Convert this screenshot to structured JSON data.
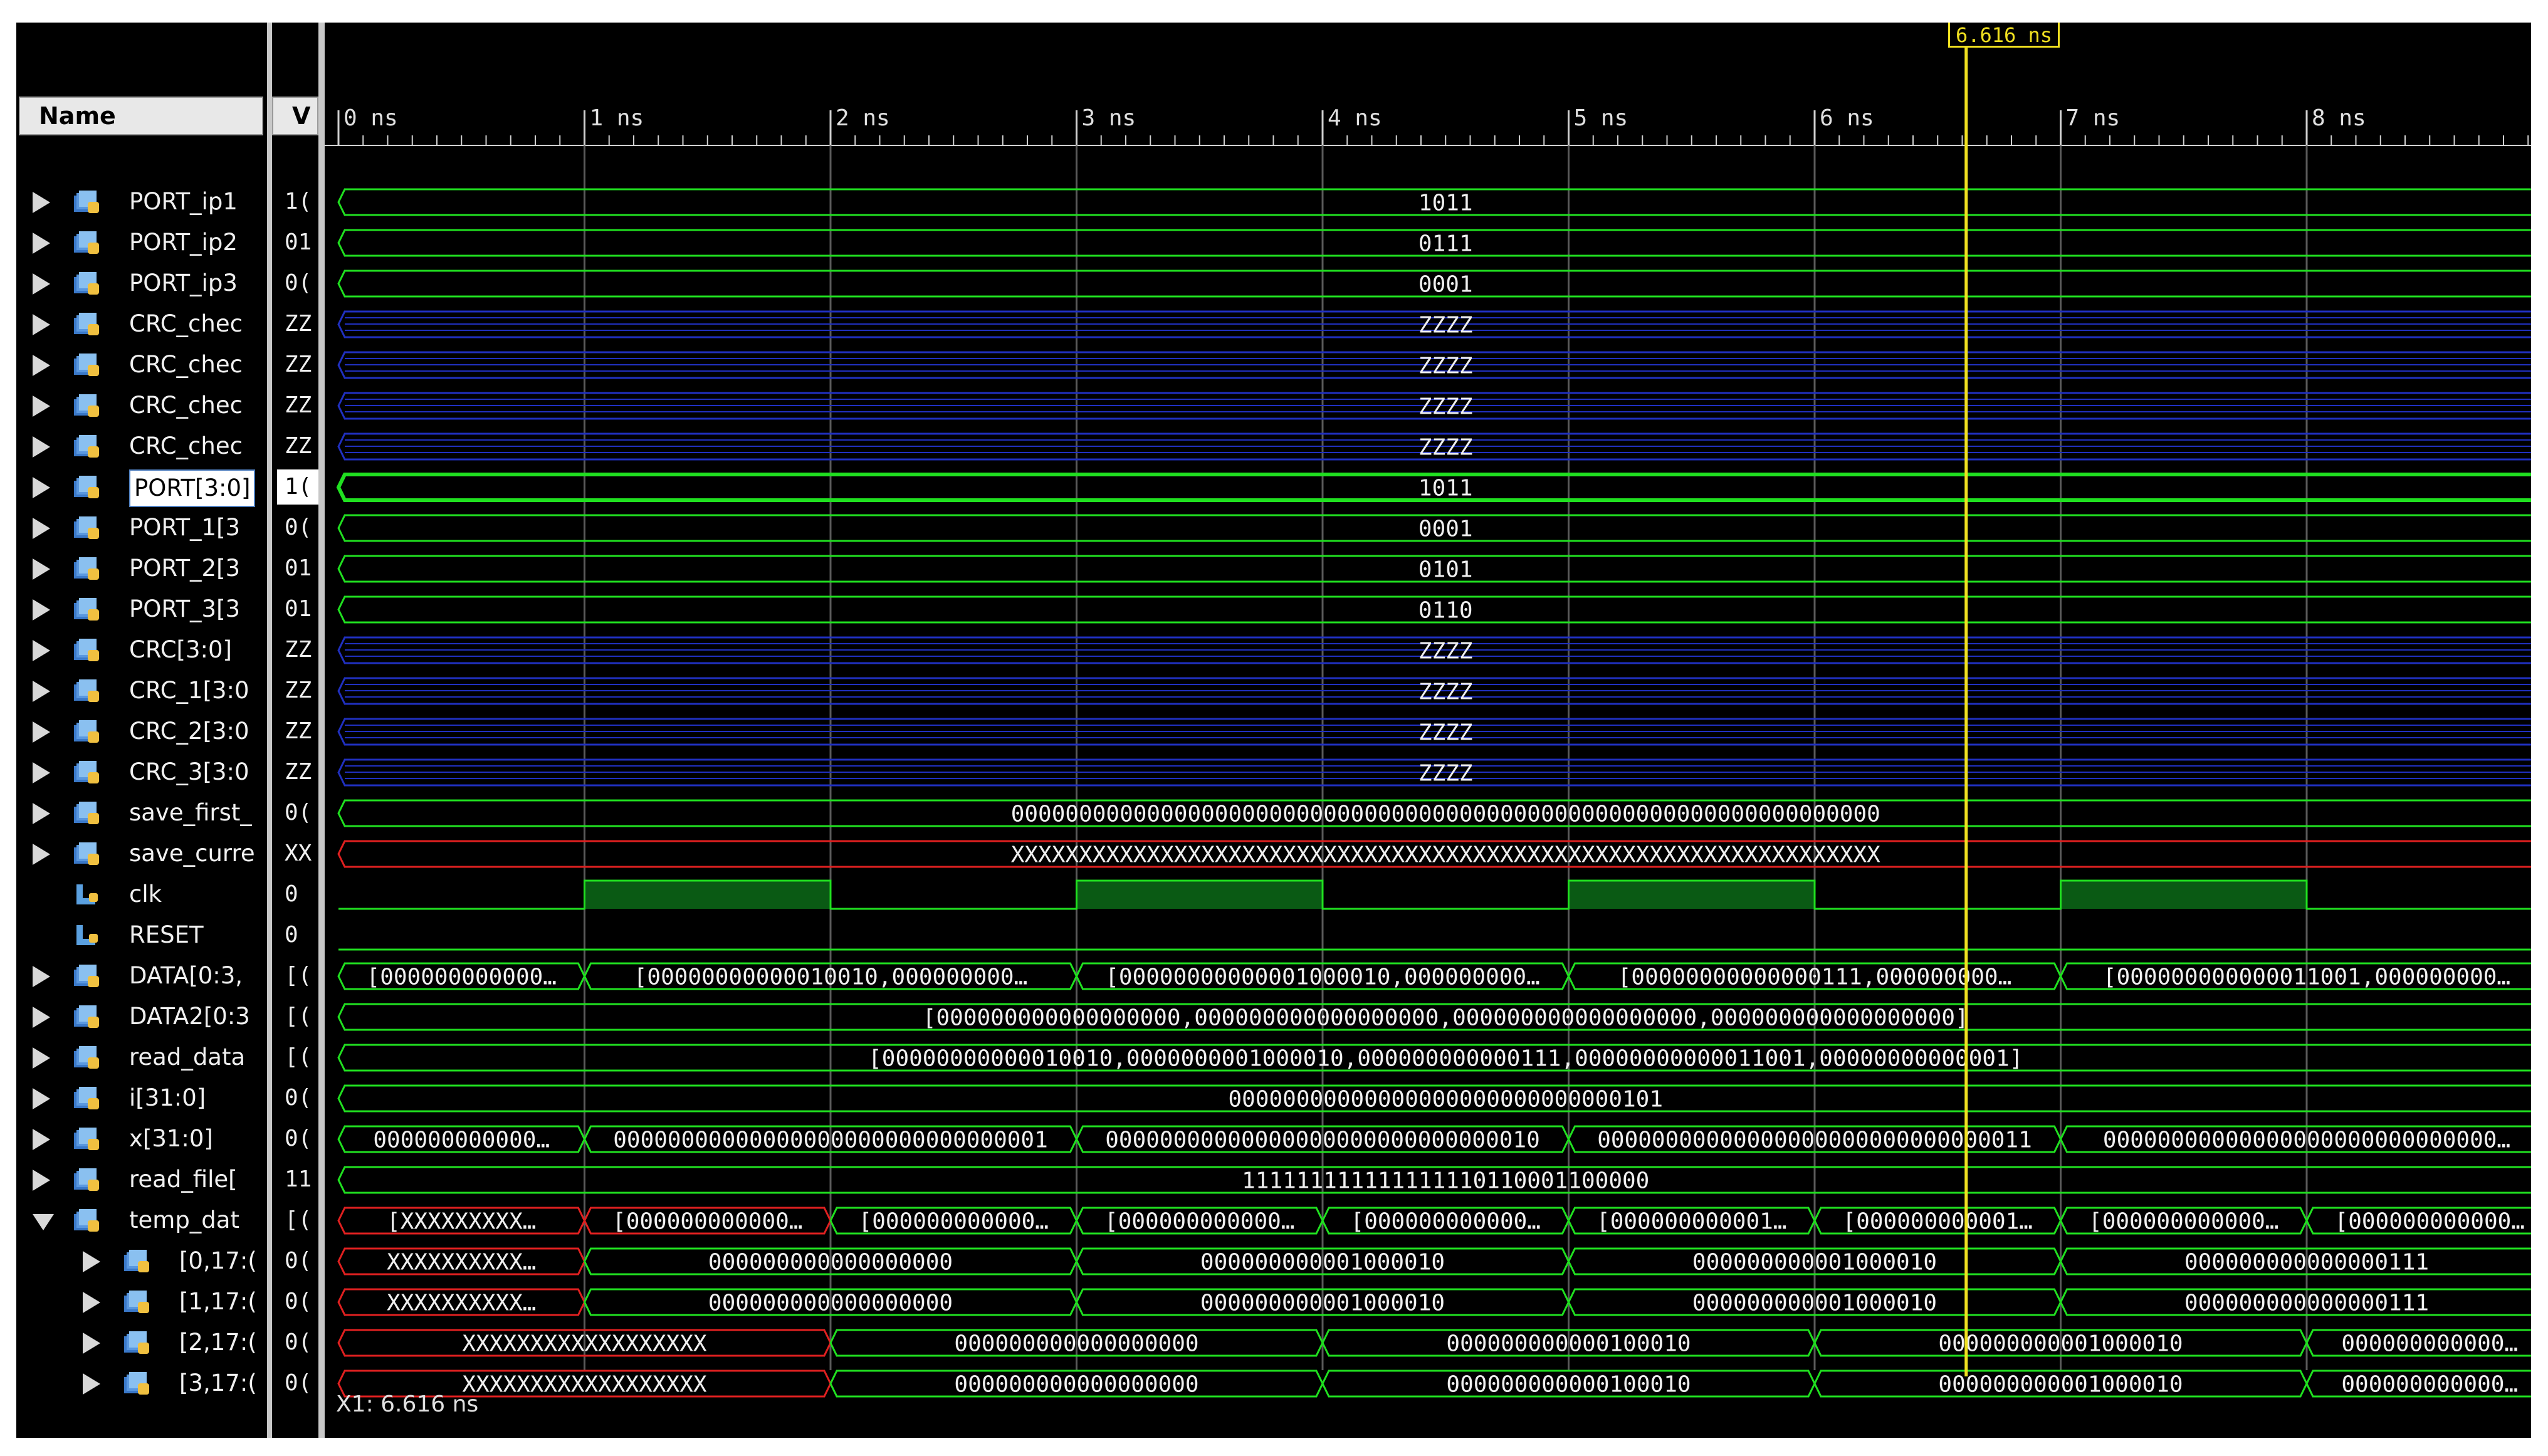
{
  "headers": {
    "name": "Name",
    "value": "V"
  },
  "cursor": {
    "label": "6.616 ns",
    "time_ns": 6.616
  },
  "status": {
    "x1": "X1: 6.616 ns"
  },
  "timeline": {
    "ticks": [
      "0 ns",
      "1 ns",
      "2 ns",
      "3 ns",
      "4 ns",
      "5 ns",
      "6 ns",
      "7 ns",
      "8 ns"
    ]
  },
  "colors": {
    "green": "#20e020",
    "blue": "#2030c0",
    "red": "#e02020",
    "cursor": "#f0e020",
    "clk_high": "#0a5a14"
  },
  "signals": [
    {
      "name": "PORT_ip1",
      "val": "1(",
      "icon": "bus-signal-icon",
      "depth": 0,
      "expand": "closed",
      "color": "green",
      "segments": [
        {
          "start": 0,
          "end": 9,
          "text": "1011"
        }
      ]
    },
    {
      "name": "PORT_ip2",
      "val": "01",
      "icon": "bus-signal-icon",
      "depth": 0,
      "expand": "closed",
      "color": "green",
      "segments": [
        {
          "start": 0,
          "end": 9,
          "text": "0111"
        }
      ]
    },
    {
      "name": "PORT_ip3",
      "val": "0(",
      "icon": "bus-signal-icon",
      "depth": 0,
      "expand": "closed",
      "color": "green",
      "segments": [
        {
          "start": 0,
          "end": 9,
          "text": "0001"
        }
      ]
    },
    {
      "name": "CRC_chec",
      "val": "ZZ",
      "icon": "bus-signal-icon",
      "depth": 0,
      "expand": "closed",
      "color": "blue",
      "segments": [
        {
          "start": 0,
          "end": 9,
          "text": "ZZZZ"
        }
      ]
    },
    {
      "name": "CRC_chec",
      "val": "ZZ",
      "icon": "bus-signal-icon",
      "depth": 0,
      "expand": "closed",
      "color": "blue",
      "segments": [
        {
          "start": 0,
          "end": 9,
          "text": "ZZZZ"
        }
      ]
    },
    {
      "name": "CRC_chec",
      "val": "ZZ",
      "icon": "bus-signal-icon",
      "depth": 0,
      "expand": "closed",
      "color": "blue",
      "segments": [
        {
          "start": 0,
          "end": 9,
          "text": "ZZZZ"
        }
      ]
    },
    {
      "name": "CRC_chec",
      "val": "ZZ",
      "icon": "bus-signal-icon",
      "depth": 0,
      "expand": "closed",
      "color": "blue",
      "segments": [
        {
          "start": 0,
          "end": 9,
          "text": "ZZZZ"
        }
      ]
    },
    {
      "name": "PORT[3:0]",
      "val": "1(",
      "icon": "bus-signal-icon",
      "depth": 0,
      "expand": "closed",
      "color": "green",
      "selected": true,
      "segments": [
        {
          "start": 0,
          "end": 9,
          "text": "1011"
        }
      ]
    },
    {
      "name": "PORT_1[3",
      "val": "0(",
      "icon": "bus-signal-icon",
      "depth": 0,
      "expand": "closed",
      "color": "green",
      "segments": [
        {
          "start": 0,
          "end": 9,
          "text": "0001"
        }
      ]
    },
    {
      "name": "PORT_2[3",
      "val": "01",
      "icon": "bus-signal-icon",
      "depth": 0,
      "expand": "closed",
      "color": "green",
      "segments": [
        {
          "start": 0,
          "end": 9,
          "text": "0101"
        }
      ]
    },
    {
      "name": "PORT_3[3",
      "val": "01",
      "icon": "bus-signal-icon",
      "depth": 0,
      "expand": "closed",
      "color": "green",
      "segments": [
        {
          "start": 0,
          "end": 9,
          "text": "0110"
        }
      ]
    },
    {
      "name": "CRC[3:0]",
      "val": "ZZ",
      "icon": "bus-signal-icon",
      "depth": 0,
      "expand": "closed",
      "color": "blue",
      "segments": [
        {
          "start": 0,
          "end": 9,
          "text": "ZZZZ"
        }
      ]
    },
    {
      "name": "CRC_1[3:0",
      "val": "ZZ",
      "icon": "bus-signal-icon",
      "depth": 0,
      "expand": "closed",
      "color": "blue",
      "segments": [
        {
          "start": 0,
          "end": 9,
          "text": "ZZZZ"
        }
      ]
    },
    {
      "name": "CRC_2[3:0",
      "val": "ZZ",
      "icon": "bus-signal-icon",
      "depth": 0,
      "expand": "closed",
      "color": "blue",
      "segments": [
        {
          "start": 0,
          "end": 9,
          "text": "ZZZZ"
        }
      ]
    },
    {
      "name": "CRC_3[3:0",
      "val": "ZZ",
      "icon": "bus-signal-icon",
      "depth": 0,
      "expand": "closed",
      "color": "blue",
      "segments": [
        {
          "start": 0,
          "end": 9,
          "text": "ZZZZ"
        }
      ]
    },
    {
      "name": "save_first_",
      "val": "0(",
      "icon": "bus-signal-icon",
      "depth": 0,
      "expand": "closed",
      "color": "green",
      "segments": [
        {
          "start": 0,
          "end": 9,
          "text": "0000000000000000000000000000000000000000000000000000000000000000"
        }
      ]
    },
    {
      "name": "save_curre",
      "val": "XX",
      "icon": "bus-signal-icon",
      "depth": 0,
      "expand": "closed",
      "color": "red",
      "segments": [
        {
          "start": 0,
          "end": 9,
          "text": "XXXXXXXXXXXXXXXXXXXXXXXXXXXXXXXXXXXXXXXXXXXXXXXXXXXXXXXXXXXXXXXX"
        }
      ]
    },
    {
      "name": "clk",
      "val": "0",
      "icon": "single-signal-icon",
      "depth": 1,
      "expand": "none",
      "kind": "clock",
      "period_ns": 2.0
    },
    {
      "name": "RESET",
      "val": "0",
      "icon": "single-signal-icon",
      "depth": 1,
      "expand": "none",
      "kind": "low"
    },
    {
      "name": "DATA[0:3,",
      "val": "[(",
      "icon": "bus-signal-icon",
      "depth": 0,
      "expand": "closed",
      "color": "green",
      "segments": [
        {
          "start": 0,
          "end": 1,
          "text": "[000000000000…"
        },
        {
          "start": 1,
          "end": 3,
          "text": "[00000000000010010,000000000…"
        },
        {
          "start": 3,
          "end": 5,
          "text": "[00000000000001000010,000000000…"
        },
        {
          "start": 5,
          "end": 7,
          "text": "[00000000000000111,000000000…"
        },
        {
          "start": 7,
          "end": 9,
          "text": "[000000000000011001,000000000…"
        }
      ]
    },
    {
      "name": "DATA2[0:3",
      "val": "[(",
      "icon": "bus-signal-icon",
      "depth": 0,
      "expand": "closed",
      "color": "green",
      "segments": [
        {
          "start": 0,
          "end": 9,
          "text": "[000000000000000000,000000000000000000,000000000000000000,000000000000000000]"
        }
      ]
    },
    {
      "name": "read_data",
      "val": "[(",
      "icon": "bus-signal-icon",
      "depth": 0,
      "expand": "closed",
      "color": "green",
      "segments": [
        {
          "start": 0,
          "end": 9,
          "text": "[00000000000010010,0000000001000010,000000000000111,00000000000011001,00000000000001]"
        }
      ]
    },
    {
      "name": "i[31:0]",
      "val": "0(",
      "icon": "bus-signal-icon",
      "depth": 0,
      "expand": "closed",
      "color": "green",
      "segments": [
        {
          "start": 0,
          "end": 9,
          "text": "00000000000000000000000000000101"
        }
      ]
    },
    {
      "name": "x[31:0]",
      "val": "0(",
      "icon": "bus-signal-icon",
      "depth": 0,
      "expand": "closed",
      "color": "green",
      "segments": [
        {
          "start": 0,
          "end": 1,
          "text": "000000000000…"
        },
        {
          "start": 1,
          "end": 3,
          "text": "00000000000000000000000000000001"
        },
        {
          "start": 3,
          "end": 5,
          "text": "00000000000000000000000000000010"
        },
        {
          "start": 5,
          "end": 7,
          "text": "00000000000000000000000000000011"
        },
        {
          "start": 7,
          "end": 9,
          "text": "00000000000000000000000000000…"
        }
      ]
    },
    {
      "name": "read_file[",
      "val": "11",
      "icon": "bus-signal-icon",
      "depth": 0,
      "expand": "closed",
      "color": "green",
      "segments": [
        {
          "start": 0,
          "end": 9,
          "text": "111111111111111110110001100000"
        }
      ]
    },
    {
      "name": "temp_dat",
      "val": "[(",
      "icon": "bus-signal-icon",
      "depth": 0,
      "expand": "open",
      "color": "green",
      "segments": [
        {
          "start": 0,
          "end": 1,
          "text": "[XXXXXXXXX…",
          "color": "red"
        },
        {
          "start": 1,
          "end": 2,
          "text": "[000000000000…",
          "color": "red"
        },
        {
          "start": 2,
          "end": 3,
          "text": "[000000000000…"
        },
        {
          "start": 3,
          "end": 4,
          "text": "[000000000000…"
        },
        {
          "start": 4,
          "end": 5,
          "text": "[000000000000…"
        },
        {
          "start": 5,
          "end": 6,
          "text": "[000000000001…"
        },
        {
          "start": 6,
          "end": 7,
          "text": "[000000000001…"
        },
        {
          "start": 7,
          "end": 8,
          "text": "[000000000000…"
        },
        {
          "start": 8,
          "end": 9,
          "text": "[000000000000…"
        }
      ]
    },
    {
      "name": "[0,17:(",
      "val": "0(",
      "icon": "bus-signal-icon",
      "depth": 2,
      "expand": "closed",
      "color": "green",
      "segments": [
        {
          "start": 0,
          "end": 1,
          "text": "XXXXXXXXXX…",
          "color": "red"
        },
        {
          "start": 1,
          "end": 3,
          "text": "000000000000000000"
        },
        {
          "start": 3,
          "end": 5,
          "text": "000000000001000010"
        },
        {
          "start": 5,
          "end": 7,
          "text": "000000000001000010"
        },
        {
          "start": 7,
          "end": 9,
          "text": "000000000000000111"
        }
      ]
    },
    {
      "name": "[1,17:(",
      "val": "0(",
      "icon": "bus-signal-icon",
      "depth": 2,
      "expand": "closed",
      "color": "green",
      "segments": [
        {
          "start": 0,
          "end": 1,
          "text": "XXXXXXXXXX…",
          "color": "red"
        },
        {
          "start": 1,
          "end": 3,
          "text": "000000000000000000"
        },
        {
          "start": 3,
          "end": 5,
          "text": "000000000001000010"
        },
        {
          "start": 5,
          "end": 7,
          "text": "000000000001000010"
        },
        {
          "start": 7,
          "end": 9,
          "text": "000000000000000111"
        }
      ]
    },
    {
      "name": "[2,17:(",
      "val": "0(",
      "icon": "bus-signal-icon",
      "depth": 2,
      "expand": "closed",
      "color": "green",
      "segments": [
        {
          "start": 0,
          "end": 2,
          "text": "XXXXXXXXXXXXXXXXXX",
          "color": "red"
        },
        {
          "start": 2,
          "end": 4,
          "text": "000000000000000000"
        },
        {
          "start": 4,
          "end": 6,
          "text": "000000000000100010"
        },
        {
          "start": 6,
          "end": 8,
          "text": "000000000001000010"
        },
        {
          "start": 8,
          "end": 9,
          "text": "000000000000…"
        }
      ]
    },
    {
      "name": "[3,17:(",
      "val": "0(",
      "icon": "bus-signal-icon",
      "depth": 2,
      "expand": "closed",
      "color": "green",
      "segments": [
        {
          "start": 0,
          "end": 2,
          "text": "XXXXXXXXXXXXXXXXXX",
          "color": "red"
        },
        {
          "start": 2,
          "end": 4,
          "text": "000000000000000000"
        },
        {
          "start": 4,
          "end": 6,
          "text": "000000000000100010"
        },
        {
          "start": 6,
          "end": 8,
          "text": "000000000001000010"
        },
        {
          "start": 8,
          "end": 9,
          "text": "000000000000…"
        }
      ]
    }
  ]
}
